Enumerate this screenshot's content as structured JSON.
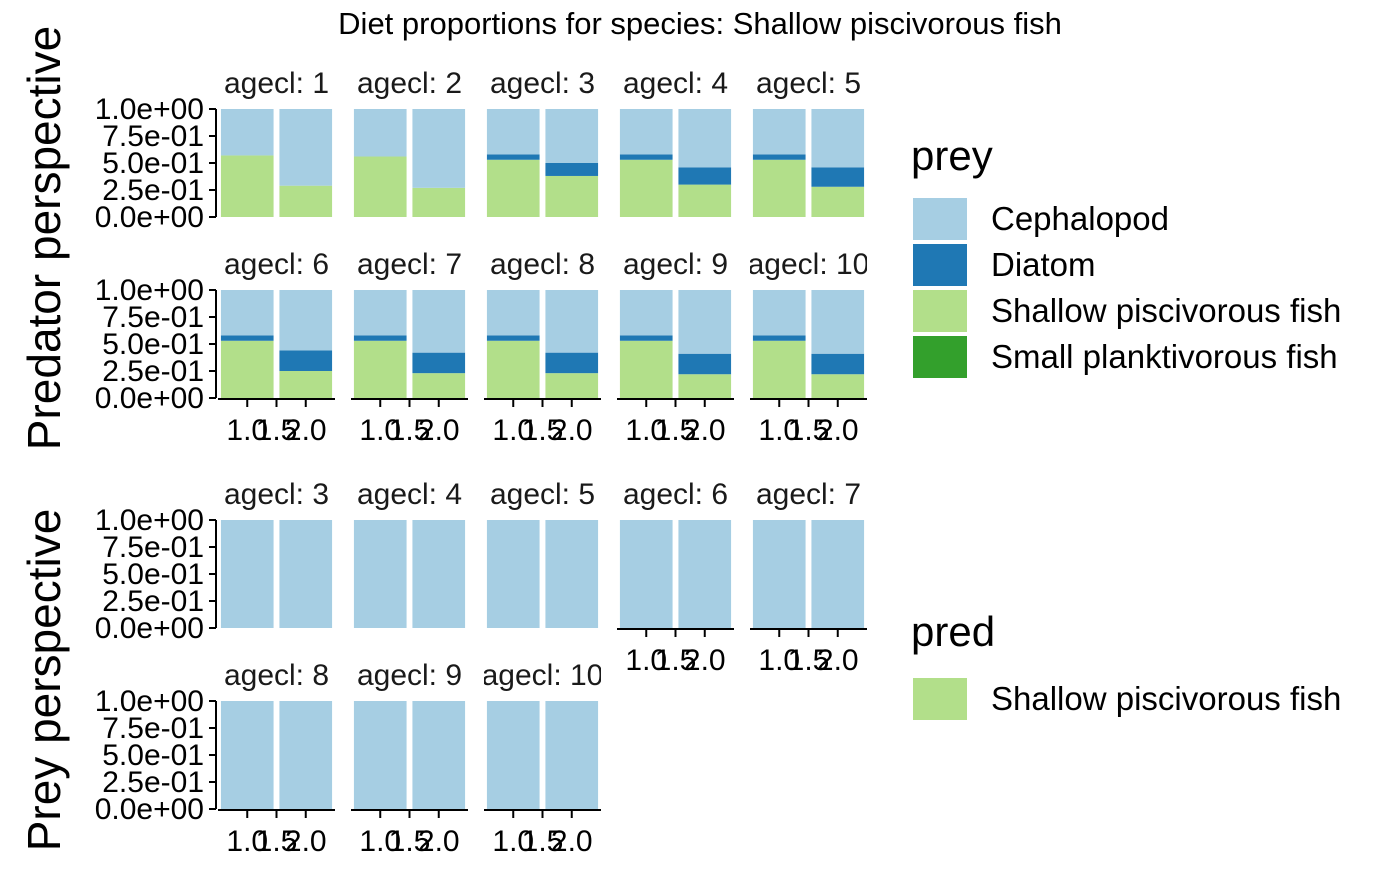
{
  "title": "Diet proportions for species: Shallow piscivorous fish",
  "colors": {
    "Cephalopod": "#A6CEE3",
    "Diatom": "#1F78B4",
    "Shallow piscivorous fish": "#B2DF8A",
    "Small planktivorous fish": "#33A02C"
  },
  "chart_data": [
    {
      "type": "bar",
      "stacked": true,
      "ylabel": "Predator perspective",
      "ylim": [
        0,
        1
      ],
      "y_ticks": [
        "0.0e+00",
        "2.5e-01",
        "5.0e-01",
        "7.5e-01",
        "1.0e+00"
      ],
      "y_tick_values": [
        0,
        0.25,
        0.5,
        0.75,
        1
      ],
      "x_ticks": [
        "1.0",
        "1.5",
        "2.0"
      ],
      "x_tick_values": [
        1.0,
        1.5,
        2.0
      ],
      "facets": [
        {
          "label": "agecl: 1",
          "bars": [
            [
              0,
              0.57,
              0,
              0.43
            ],
            [
              0,
              0.29,
              0,
              0.71
            ]
          ]
        },
        {
          "label": "agecl: 2",
          "bars": [
            [
              0,
              0.56,
              0,
              0.44
            ],
            [
              0,
              0.27,
              0,
              0.73
            ]
          ]
        },
        {
          "label": "agecl: 3",
          "bars": [
            [
              0,
              0.53,
              0.05,
              0.42
            ],
            [
              0,
              0.38,
              0.12,
              0.5
            ]
          ]
        },
        {
          "label": "agecl: 4",
          "bars": [
            [
              0,
              0.53,
              0.05,
              0.42
            ],
            [
              0,
              0.3,
              0.16,
              0.54
            ]
          ]
        },
        {
          "label": "agecl: 5",
          "bars": [
            [
              0,
              0.53,
              0.05,
              0.42
            ],
            [
              0,
              0.28,
              0.18,
              0.54
            ]
          ]
        },
        {
          "label": "agecl: 6",
          "bars": [
            [
              0,
              0.53,
              0.05,
              0.42
            ],
            [
              0,
              0.25,
              0.19,
              0.56
            ]
          ]
        },
        {
          "label": "agecl: 7",
          "bars": [
            [
              0,
              0.53,
              0.05,
              0.42
            ],
            [
              0,
              0.23,
              0.19,
              0.58
            ]
          ]
        },
        {
          "label": "agecl: 8",
          "bars": [
            [
              0,
              0.53,
              0.05,
              0.42
            ],
            [
              0,
              0.23,
              0.19,
              0.58
            ]
          ]
        },
        {
          "label": "agecl: 9",
          "bars": [
            [
              0,
              0.53,
              0.05,
              0.42
            ],
            [
              0,
              0.22,
              0.19,
              0.59
            ]
          ]
        },
        {
          "label": "agecl: 10",
          "bars": [
            [
              0,
              0.53,
              0.05,
              0.42
            ],
            [
              0,
              0.22,
              0.19,
              0.59
            ]
          ]
        }
      ],
      "legend": {
        "title": "prey",
        "entries": [
          "Cephalopod",
          "Diatom",
          "Shallow piscivorous fish",
          "Small planktivorous fish"
        ],
        "position": "right"
      }
    },
    {
      "type": "bar",
      "stacked": true,
      "ylabel": "Prey perspective",
      "ylim": [
        0,
        1
      ],
      "y_ticks": [
        "0.0e+00",
        "2.5e-01",
        "5.0e-01",
        "7.5e-01",
        "1.0e+00"
      ],
      "y_tick_values": [
        0,
        0.25,
        0.5,
        0.75,
        1
      ],
      "x_ticks": [
        "1.0",
        "1.5",
        "2.0"
      ],
      "x_tick_values": [
        1.0,
        1.5,
        2.0
      ],
      "facets": [
        {
          "label": "agecl: 3",
          "bars": [
            1,
            1
          ]
        },
        {
          "label": "agecl: 4",
          "bars": [
            1,
            1
          ]
        },
        {
          "label": "agecl: 5",
          "bars": [
            1,
            1
          ]
        },
        {
          "label": "agecl: 6",
          "bars": [
            1,
            1
          ]
        },
        {
          "label": "agecl: 7",
          "bars": [
            1,
            1
          ]
        },
        {
          "label": "agecl: 8",
          "bars": [
            1,
            1
          ]
        },
        {
          "label": "agecl: 9",
          "bars": [
            1,
            1
          ]
        },
        {
          "label": "agecl: 10",
          "bars": [
            1,
            1
          ]
        }
      ],
      "legend": {
        "title": "pred",
        "entries": [
          "Shallow piscivorous fish"
        ],
        "position": "right"
      }
    }
  ]
}
